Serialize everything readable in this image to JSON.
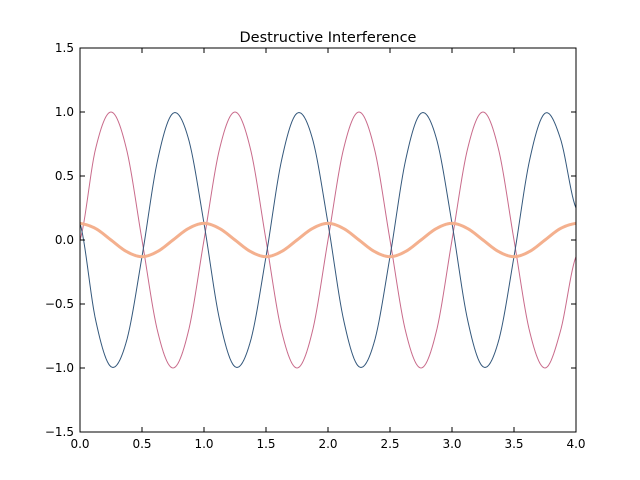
{
  "chart_data": {
    "type": "line",
    "title": "Destructive Interference",
    "xlabel": "",
    "ylabel": "",
    "xlim": [
      0.0,
      4.0
    ],
    "ylim": [
      -1.5,
      1.5
    ],
    "x_ticks": [
      0.0,
      0.5,
      1.0,
      1.5,
      2.0,
      2.5,
      3.0,
      3.5,
      4.0
    ],
    "y_ticks": [
      -1.5,
      -1.0,
      -0.5,
      0.0,
      0.5,
      1.0,
      1.5
    ],
    "x_tick_labels": [
      "0.0",
      "0.5",
      "1.0",
      "1.5",
      "2.0",
      "2.5",
      "3.0",
      "3.5",
      "4.0"
    ],
    "y_tick_labels": [
      "−1.5",
      "−1.0",
      "−0.5",
      "0.0",
      "0.5",
      "1.0",
      "1.5"
    ],
    "grid": false,
    "legend": "none",
    "series": [
      {
        "color": "#c96b8b",
        "line_width": 1,
        "x": [
          0.0,
          0.125,
          0.25,
          0.375,
          0.5,
          0.625,
          0.75,
          0.875,
          1.0,
          1.125,
          1.25,
          1.375,
          1.5,
          1.625,
          1.75,
          1.875,
          2.0,
          2.125,
          2.25,
          2.375,
          2.5,
          2.625,
          2.75,
          2.875,
          3.0,
          3.125,
          3.25,
          3.375,
          3.5,
          3.625,
          3.75,
          3.875,
          4.0
        ],
        "y": [
          0.0,
          0.71,
          1.0,
          0.71,
          0.0,
          -0.71,
          -1.0,
          -0.71,
          0.0,
          0.71,
          1.0,
          0.71,
          0.0,
          -0.71,
          -1.0,
          -0.71,
          0.0,
          0.71,
          1.0,
          0.71,
          0.0,
          -0.71,
          -1.0,
          -0.71,
          0.0,
          0.71,
          1.0,
          0.71,
          0.0,
          -0.71,
          -1.0,
          -0.71,
          -0.13
        ]
      },
      {
        "color": "#34587c",
        "line_width": 1,
        "x": [
          0.0,
          0.125,
          0.25,
          0.375,
          0.5,
          0.625,
          0.75,
          0.875,
          1.0,
          1.125,
          1.25,
          1.375,
          1.5,
          1.625,
          1.75,
          1.875,
          2.0,
          2.125,
          2.25,
          2.375,
          2.5,
          2.625,
          2.75,
          2.875,
          3.0,
          3.125,
          3.25,
          3.375,
          3.5,
          3.625,
          3.75,
          3.875,
          4.0
        ],
        "y": [
          0.13,
          -0.62,
          -0.99,
          -0.79,
          -0.13,
          0.62,
          0.99,
          0.79,
          0.13,
          -0.62,
          -0.99,
          -0.79,
          -0.13,
          0.62,
          0.99,
          0.79,
          0.13,
          -0.62,
          -0.99,
          -0.79,
          -0.13,
          0.62,
          0.99,
          0.79,
          0.13,
          -0.62,
          -0.99,
          -0.79,
          -0.13,
          0.62,
          0.99,
          0.79,
          0.25
        ]
      },
      {
        "color": "#f4b08e",
        "line_width": 3,
        "x": [
          0.0,
          0.125,
          0.25,
          0.375,
          0.5,
          0.625,
          0.75,
          0.875,
          1.0,
          1.125,
          1.25,
          1.375,
          1.5,
          1.625,
          1.75,
          1.875,
          2.0,
          2.125,
          2.25,
          2.375,
          2.5,
          2.625,
          2.75,
          2.875,
          3.0,
          3.125,
          3.25,
          3.375,
          3.5,
          3.625,
          3.75,
          3.875,
          4.0
        ],
        "y": [
          0.13,
          0.09,
          0.0,
          -0.09,
          -0.13,
          -0.09,
          0.0,
          0.09,
          0.13,
          0.09,
          0.0,
          -0.09,
          -0.13,
          -0.09,
          0.0,
          0.09,
          0.13,
          0.09,
          0.0,
          -0.09,
          -0.13,
          -0.09,
          0.0,
          0.09,
          0.13,
          0.09,
          0.0,
          -0.09,
          -0.13,
          -0.09,
          0.0,
          0.09,
          0.13
        ]
      }
    ]
  }
}
